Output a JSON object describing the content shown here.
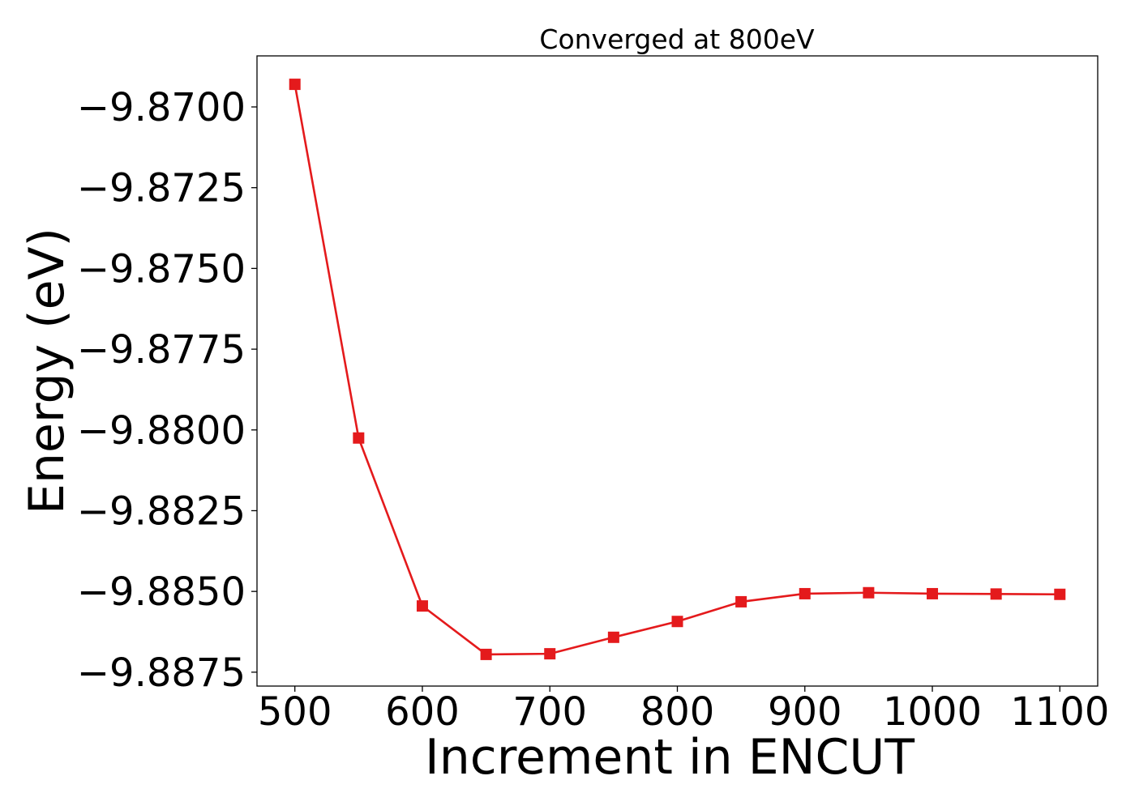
{
  "chart_data": {
    "type": "line",
    "title": "Converged at 800eV",
    "xlabel": "Increment in ENCUT",
    "ylabel": "Energy (eV)",
    "x": [
      500,
      550,
      600,
      650,
      700,
      750,
      800,
      850,
      900,
      950,
      1000,
      1050,
      1100
    ],
    "series": [
      {
        "values": [
          -9.8693,
          -9.88025,
          -9.88545,
          -9.88695,
          -9.88693,
          -9.88642,
          -9.88593,
          -9.88532,
          -9.88507,
          -9.88504,
          -9.88507,
          -9.88508,
          -9.88509
        ],
        "color": "#e41a1c",
        "marker": "square"
      }
    ],
    "xticks": [
      500,
      600,
      700,
      800,
      900,
      1000,
      1100
    ],
    "yticks": [
      -9.8875,
      -9.885,
      -9.8825,
      -9.88,
      -9.8775,
      -9.875,
      -9.8725,
      -9.87
    ],
    "ytick_labels": [
      "−9.8875",
      "−9.8850",
      "−9.8825",
      "−9.8800",
      "−9.8775",
      "−9.8750",
      "−9.8725",
      "−9.8700"
    ],
    "xlim": [
      470.3,
      1129.7
    ],
    "ylim": [
      -9.88793,
      -9.86842
    ],
    "grid": false,
    "legend": "none"
  }
}
